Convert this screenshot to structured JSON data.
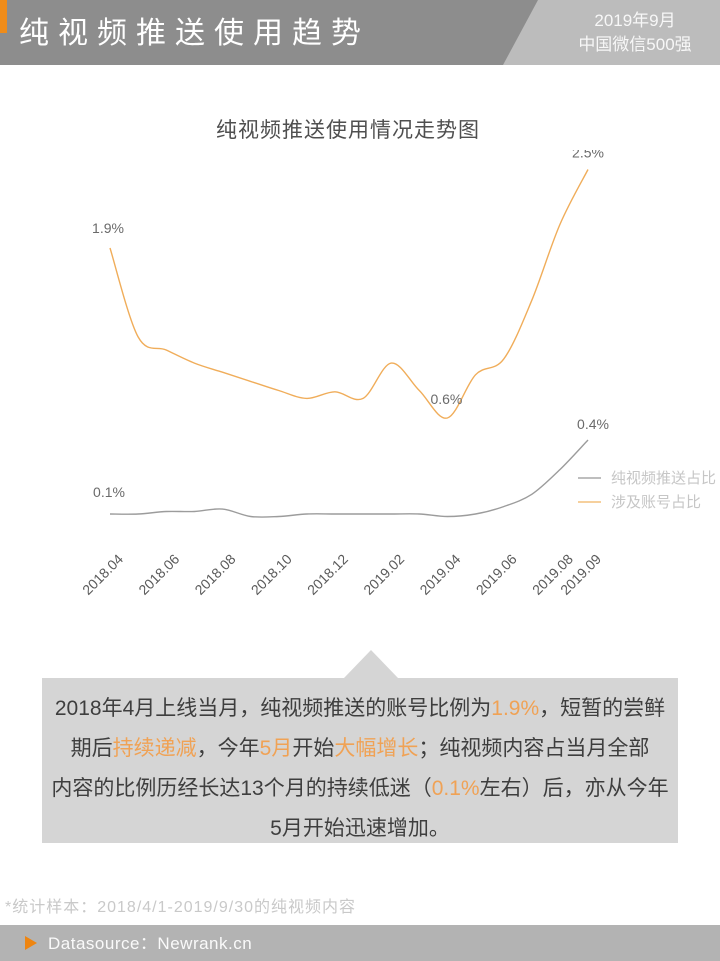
{
  "header": {
    "title": "纯视频推送使用趋势",
    "date_line1": "2019年9月",
    "date_line2": "中国微信500强"
  },
  "chart_data": {
    "type": "line",
    "title": "纯视频推送使用情况走势图",
    "grid": false,
    "axes_hidden": true,
    "legend_position": "right",
    "unit": "%",
    "months": [
      "2018.04",
      "2018.05",
      "2018.06",
      "2018.07",
      "2018.08",
      "2018.09",
      "2018.10",
      "2018.11",
      "2018.12",
      "2019.01",
      "2019.02",
      "2019.03",
      "2019.04",
      "2019.05",
      "2019.06",
      "2019.07",
      "2019.08",
      "2019.09"
    ],
    "x_labels": [
      "2018.04",
      "2018.06",
      "2018.08",
      "2018.10",
      "2018.12",
      "2019.02",
      "2019.04",
      "2019.06",
      "2019.08",
      "2019.09"
    ],
    "series": [
      {
        "name": "纯视频推送占比",
        "color": "#9c9c9c",
        "values": [
          0.1,
          0.1,
          0.11,
          0.11,
          0.12,
          0.09,
          0.09,
          0.1,
          0.1,
          0.1,
          0.1,
          0.1,
          0.09,
          0.1,
          0.13,
          0.18,
          0.28,
          0.4
        ]
      },
      {
        "name": "涉及账号占比",
        "color": "#f0ad5a",
        "values": [
          1.9,
          1.22,
          1.12,
          1.02,
          0.95,
          0.88,
          0.81,
          0.75,
          0.8,
          0.75,
          1.02,
          0.81,
          0.6,
          0.93,
          1.05,
          1.5,
          2.08,
          2.5
        ]
      }
    ],
    "point_labels": [
      {
        "text": "1.9%",
        "series": "涉及账号占比",
        "month": "2018.04"
      },
      {
        "text": "0.6%",
        "series": "涉及账号占比",
        "month": "2019.04"
      },
      {
        "text": "2.5%",
        "series": "涉及账号占比",
        "month": "2019.09"
      },
      {
        "text": "0.1%",
        "series": "纯视频推送占比",
        "month": "2018.04"
      },
      {
        "text": "0.4%",
        "series": "纯视频推送占比",
        "month": "2019.09"
      }
    ]
  },
  "annotation": {
    "lines": [
      {
        "segments": [
          {
            "text": "2018年4月上线当月，纯视频推送的账号比例为",
            "highlight": false
          },
          {
            "text": "1.9%",
            "highlight": true
          },
          {
            "text": "，短暂的尝鲜",
            "highlight": false
          }
        ]
      },
      {
        "segments": [
          {
            "text": "期后",
            "highlight": false
          },
          {
            "text": "持续递减",
            "highlight": true
          },
          {
            "text": "，今年",
            "highlight": false
          },
          {
            "text": "5月",
            "highlight": true
          },
          {
            "text": "开始",
            "highlight": false
          },
          {
            "text": "大幅增长",
            "highlight": true
          },
          {
            "text": "；纯视频内容占当月全部",
            "highlight": false
          }
        ]
      },
      {
        "segments": [
          {
            "text": "内容的比例历经长达13个月的持续低迷（",
            "highlight": false
          },
          {
            "text": "0.1%",
            "highlight": true
          },
          {
            "text": "左右）后，亦从今年",
            "highlight": false
          }
        ]
      },
      {
        "segments": [
          {
            "text": "5月开始迅速增加。",
            "highlight": false
          }
        ]
      }
    ]
  },
  "footer": {
    "note": "*统计样本：2018/4/1-2019/9/30的纯视频内容",
    "datasource": "Datasource：Newrank.cn"
  },
  "colors": {
    "accent_orange": "#ef8c1a",
    "highlight_orange": "#f0a255",
    "curve_orange": "#f0ad5a",
    "curve_gray": "#9c9c9c",
    "header_gray": "#8d8d8d",
    "header_light_gray": "#bcbcbc",
    "annotation_bg": "#d5d5d5",
    "footer_bar_gray": "#b3b3b3"
  }
}
